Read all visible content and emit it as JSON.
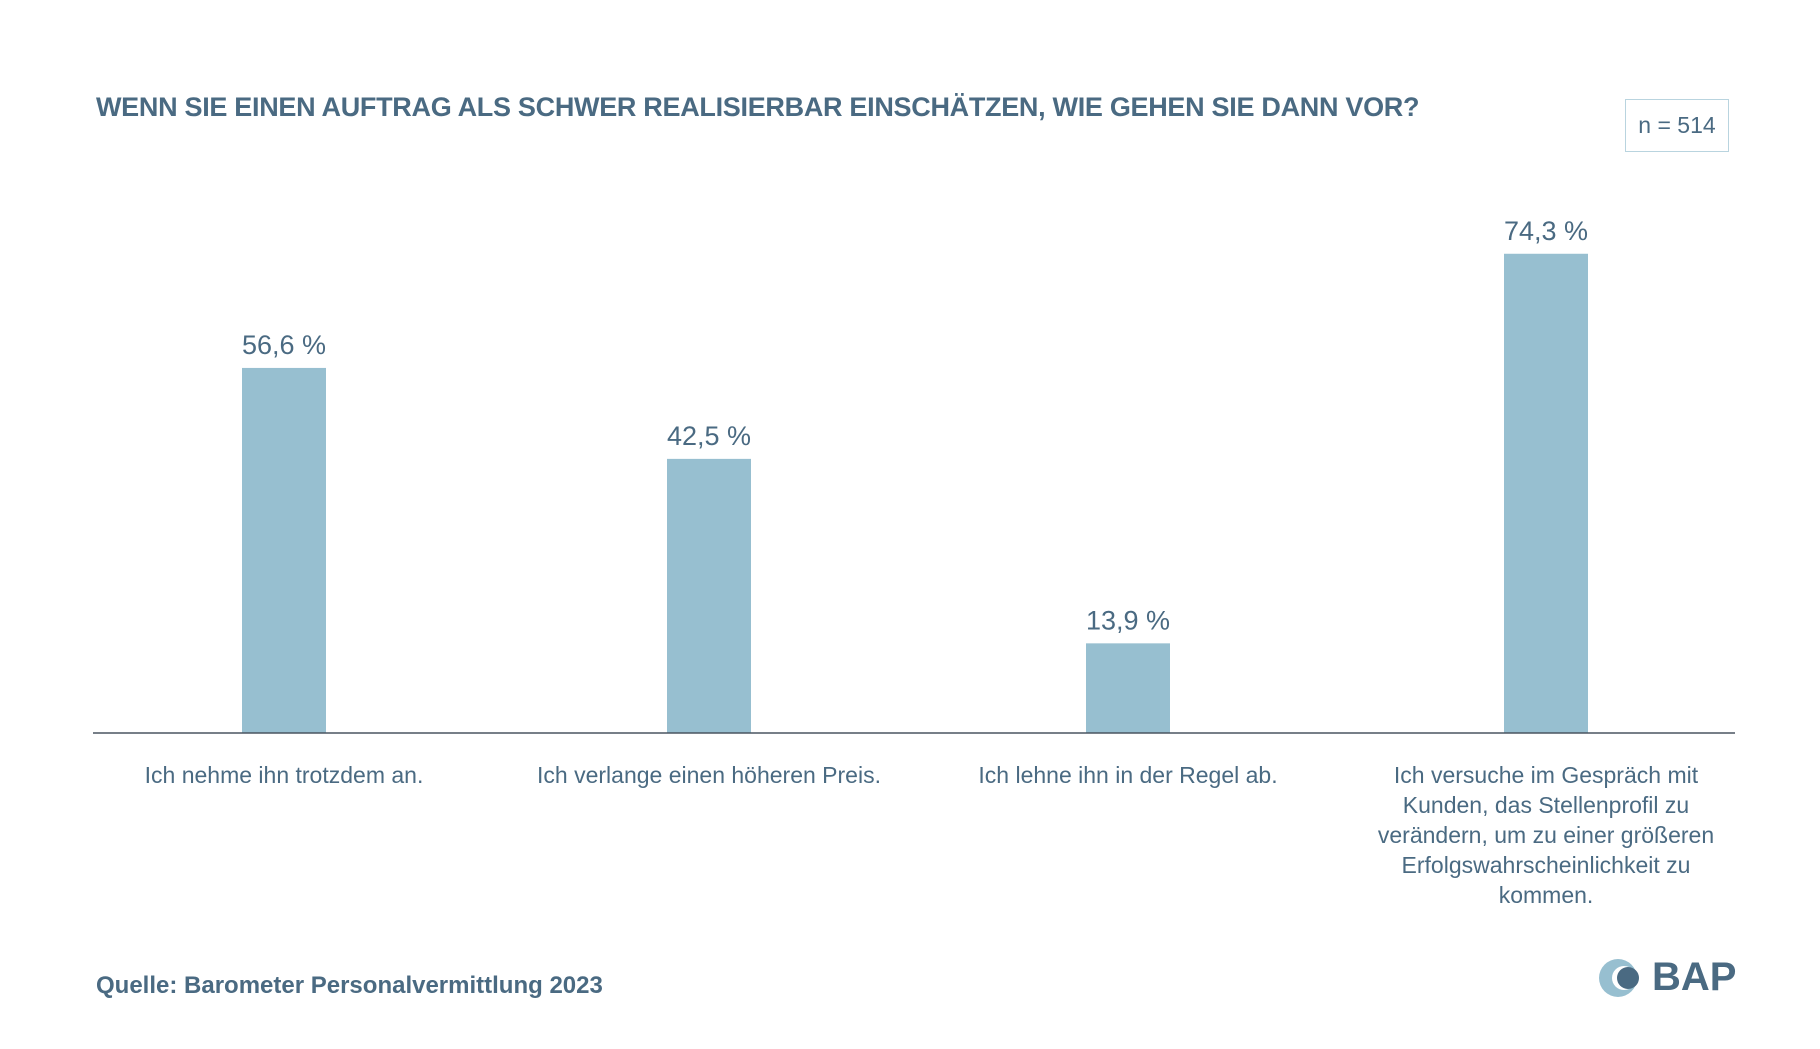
{
  "chart_data": {
    "type": "bar",
    "title": "WENN SIE EINEN AUFTRAG ALS SCHWER REALISIERBAR EINSCHÄTZEN, WIE GEHEN SIE DANN VOR?",
    "categories": [
      "Ich nehme ihn trotzdem an.",
      "Ich verlange einen höheren Preis.",
      "Ich lehne ihn in der Regel ab.",
      "Ich versuche im Gespräch mit Kunden, das Stellenprofil zu verändern, um zu einer größeren Erfolgswahrscheinlichkeit zu kommen."
    ],
    "values": [
      56.6,
      42.5,
      13.9,
      74.3
    ],
    "data_labels": [
      "56,6 %",
      "42,5 %",
      "13,9 %",
      "74,3 %"
    ],
    "unit": "%",
    "ylim": [
      0,
      100
    ],
    "grid": false,
    "bar_color": "#97bfd0",
    "text_color": "#4a6a82"
  },
  "sample_size": "n = 514",
  "source": "Quelle: Barometer Personalvermittlung 2023",
  "logo": {
    "text": "BAP"
  }
}
